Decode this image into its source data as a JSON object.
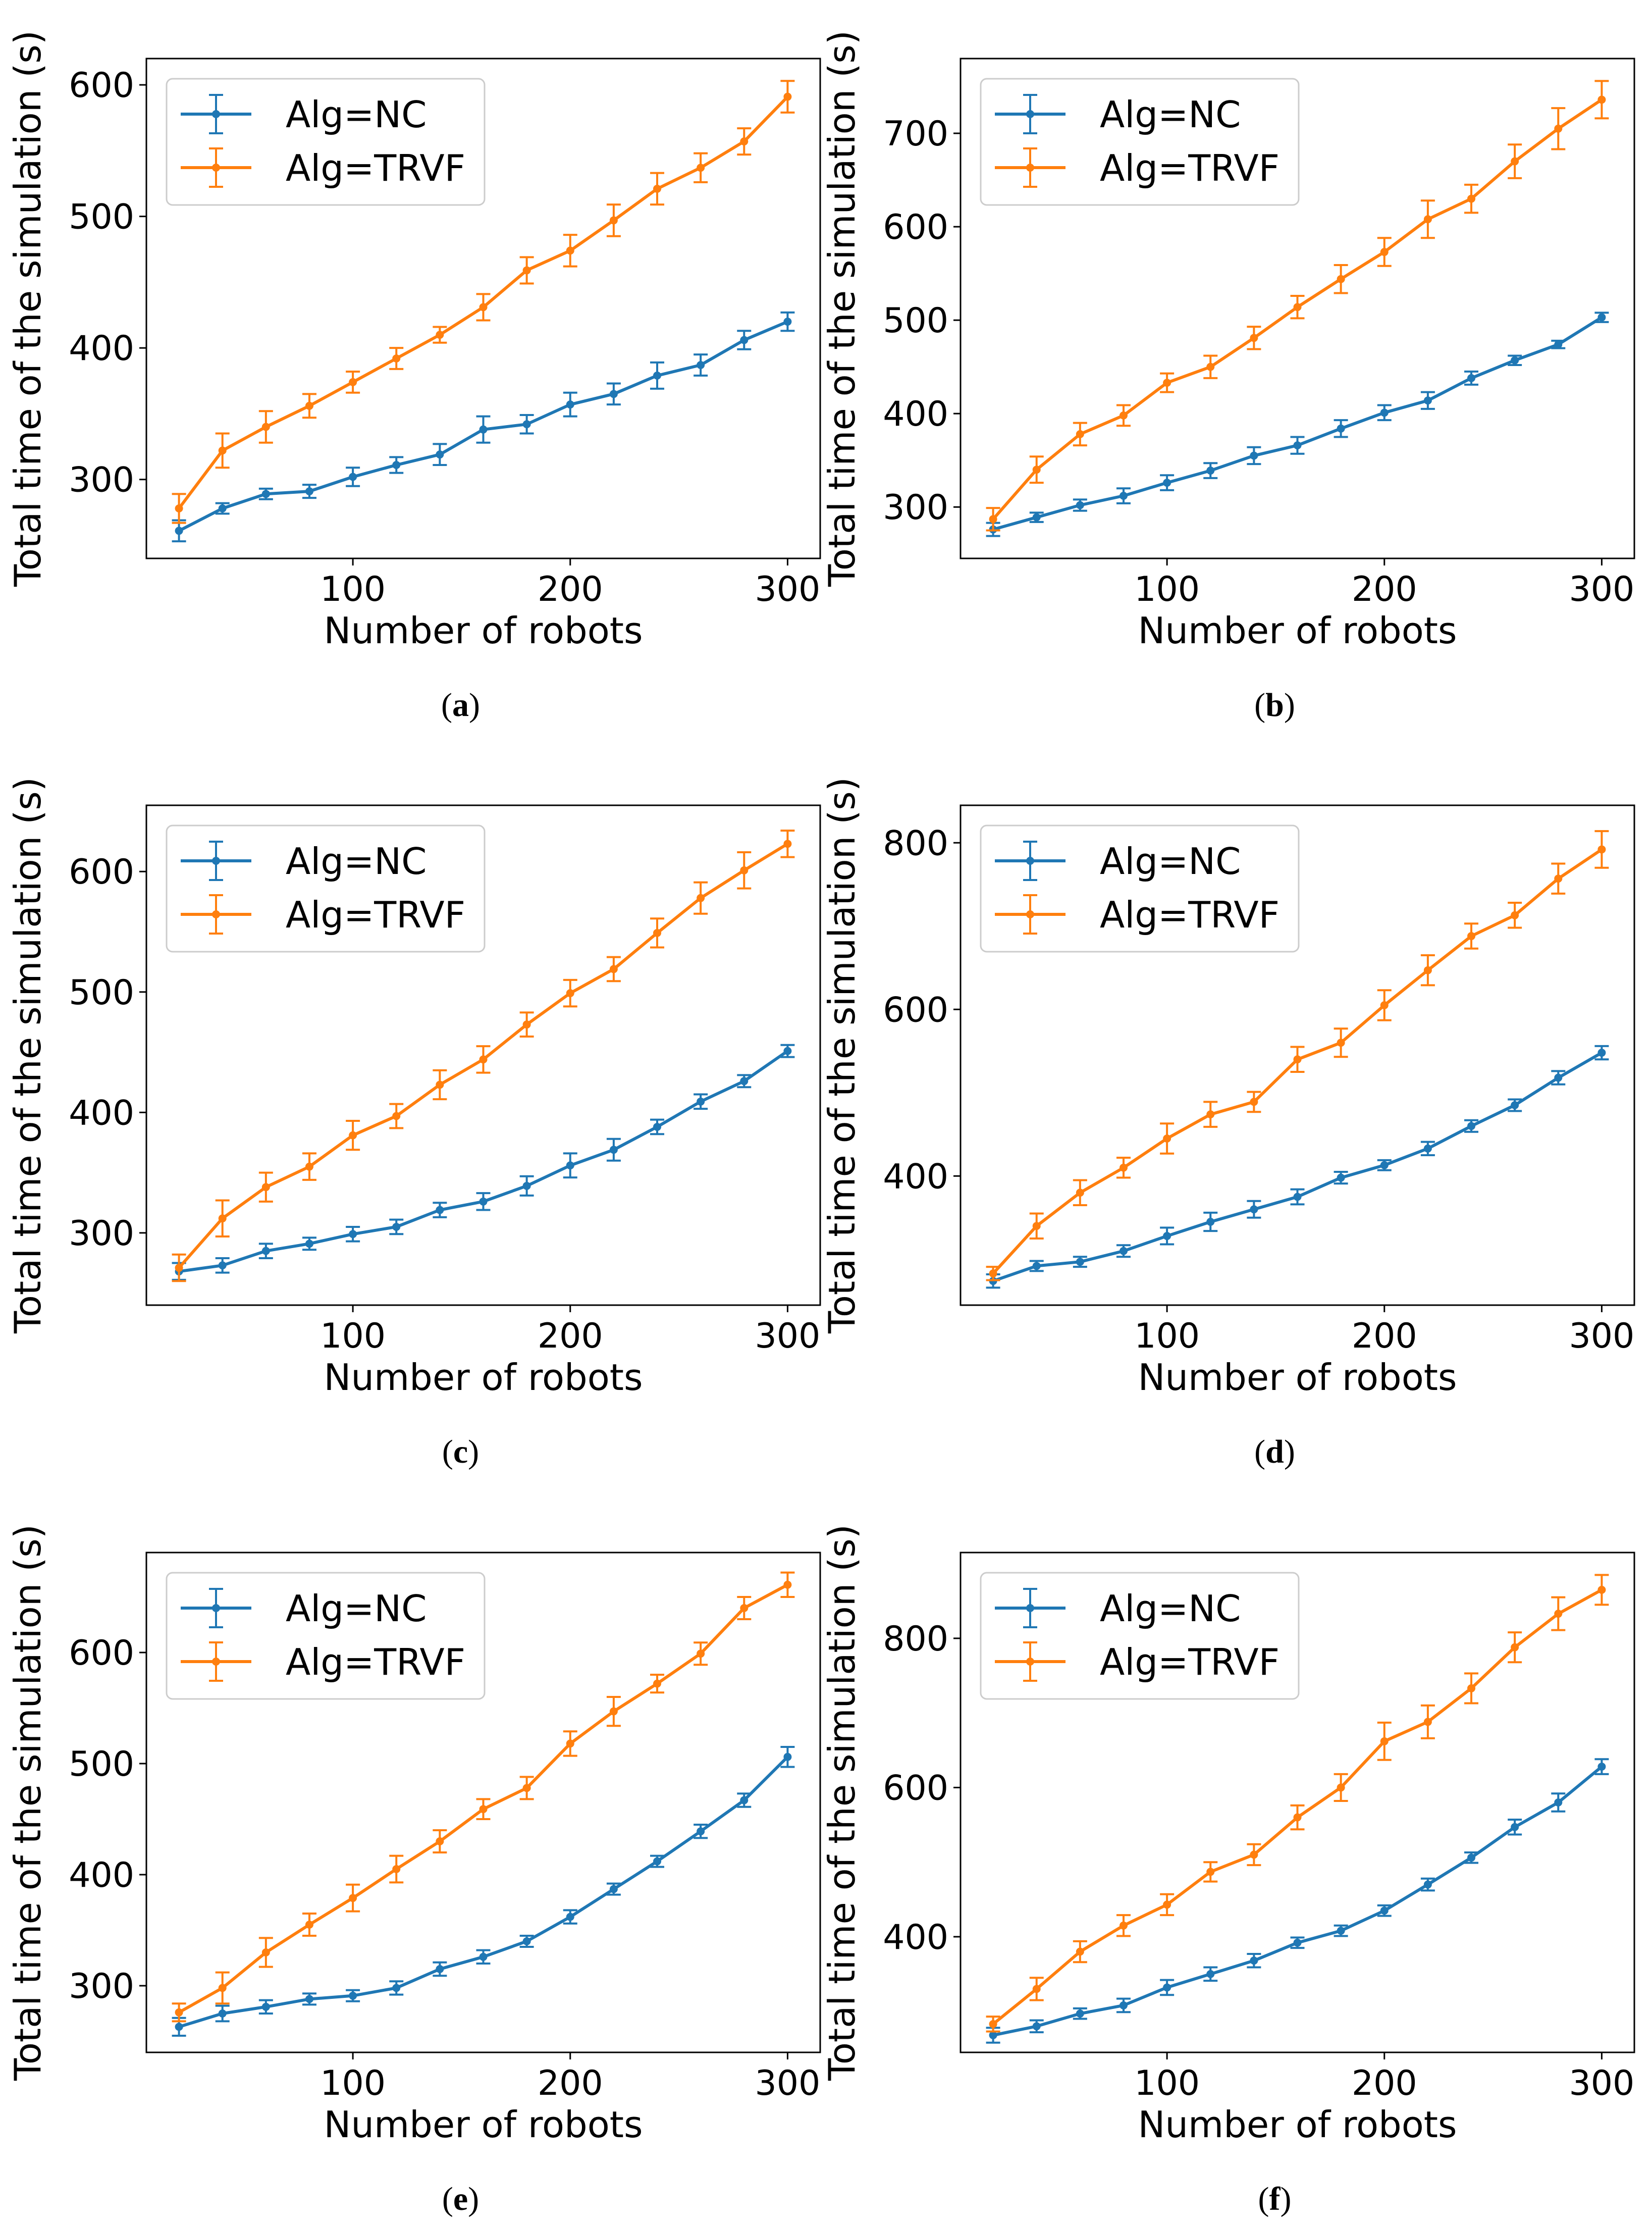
{
  "figure": {
    "colors": {
      "nc": "#1f77b4",
      "trvf": "#ff7f0e",
      "axis": "#000000"
    }
  },
  "chart_data": [
    {
      "type": "line",
      "caption": "(a)",
      "caption_letter": "a",
      "xlabel": "Number of robots",
      "ylabel": "Total time of the simulation (s)",
      "xlim": [
        5,
        315
      ],
      "ylim": [
        240,
        620
      ],
      "xticks": [
        100,
        200,
        300
      ],
      "yticks": [
        300,
        400,
        500,
        600
      ],
      "legend": [
        "Alg=NC",
        "Alg=TRVF"
      ],
      "legend_position": "upper-left",
      "x": [
        20,
        40,
        60,
        80,
        100,
        120,
        140,
        160,
        180,
        200,
        220,
        240,
        260,
        280,
        300
      ],
      "series": [
        {
          "name": "Alg=NC",
          "values": [
            261,
            278,
            289,
            291,
            302,
            311,
            319,
            338,
            342,
            357,
            365,
            379,
            387,
            406,
            420
          ],
          "errors": [
            8,
            4,
            4,
            5,
            7,
            6,
            8,
            10,
            7,
            9,
            8,
            10,
            8,
            7,
            7
          ]
        },
        {
          "name": "Alg=TRVF",
          "values": [
            278,
            322,
            340,
            356,
            374,
            392,
            410,
            431,
            459,
            474,
            497,
            521,
            537,
            557,
            591
          ],
          "errors": [
            11,
            13,
            12,
            9,
            8,
            8,
            6,
            10,
            10,
            12,
            12,
            12,
            11,
            10,
            12
          ]
        }
      ]
    },
    {
      "type": "line",
      "caption": "(b)",
      "caption_letter": "b",
      "xlabel": "Number of robots",
      "ylabel": "Total time of the simulation (s)",
      "xlim": [
        5,
        315
      ],
      "ylim": [
        245,
        780
      ],
      "xticks": [
        100,
        200,
        300
      ],
      "yticks": [
        300,
        400,
        500,
        600,
        700
      ],
      "legend": [
        "Alg=NC",
        "Alg=TRVF"
      ],
      "legend_position": "upper-left",
      "x": [
        20,
        40,
        60,
        80,
        100,
        120,
        140,
        160,
        180,
        200,
        220,
        240,
        260,
        280,
        300
      ],
      "series": [
        {
          "name": "Alg=NC",
          "values": [
            276,
            289,
            302,
            312,
            326,
            339,
            355,
            366,
            384,
            401,
            414,
            438,
            457,
            474,
            503
          ],
          "errors": [
            7,
            5,
            6,
            8,
            8,
            8,
            9,
            9,
            9,
            8,
            9,
            7,
            5,
            4,
            5
          ]
        },
        {
          "name": "Alg=TRVF",
          "values": [
            287,
            340,
            378,
            398,
            433,
            450,
            481,
            514,
            544,
            573,
            608,
            630,
            670,
            705,
            736
          ],
          "errors": [
            12,
            14,
            12,
            11,
            10,
            12,
            12,
            12,
            15,
            15,
            20,
            15,
            18,
            22,
            20
          ]
        }
      ]
    },
    {
      "type": "line",
      "caption": "(c)",
      "caption_letter": "c",
      "xlabel": "Number of robots",
      "ylabel": "Total time of the simulation (s)",
      "xlim": [
        5,
        315
      ],
      "ylim": [
        240,
        655
      ],
      "xticks": [
        100,
        200,
        300
      ],
      "yticks": [
        300,
        400,
        500,
        600
      ],
      "legend": [
        "Alg=NC",
        "Alg=TRVF"
      ],
      "legend_position": "upper-left",
      "x": [
        20,
        40,
        60,
        80,
        100,
        120,
        140,
        160,
        180,
        200,
        220,
        240,
        260,
        280,
        300
      ],
      "series": [
        {
          "name": "Alg=NC",
          "values": [
            268,
            273,
            285,
            291,
            299,
            305,
            319,
            326,
            339,
            356,
            369,
            388,
            409,
            426,
            451
          ],
          "errors": [
            7,
            6,
            6,
            5,
            6,
            6,
            6,
            7,
            8,
            10,
            9,
            6,
            6,
            5,
            5
          ]
        },
        {
          "name": "Alg=TRVF",
          "values": [
            271,
            312,
            338,
            355,
            381,
            397,
            423,
            444,
            473,
            499,
            519,
            549,
            578,
            601,
            623
          ],
          "errors": [
            11,
            15,
            12,
            11,
            12,
            10,
            12,
            11,
            10,
            11,
            10,
            12,
            13,
            15,
            11
          ]
        }
      ]
    },
    {
      "type": "line",
      "caption": "(d)",
      "caption_letter": "d",
      "xlabel": "Number of robots",
      "ylabel": "Total time of the simulation (s)",
      "xlim": [
        5,
        315
      ],
      "ylim": [
        245,
        845
      ],
      "xticks": [
        100,
        200,
        300
      ],
      "yticks": [
        400,
        600,
        800
      ],
      "legend": [
        "Alg=NC",
        "Alg=TRVF"
      ],
      "legend_position": "upper-left",
      "x": [
        20,
        40,
        60,
        80,
        100,
        120,
        140,
        160,
        180,
        200,
        220,
        240,
        260,
        280,
        300
      ],
      "series": [
        {
          "name": "Alg=NC",
          "values": [
            274,
            292,
            297,
            310,
            328,
            345,
            360,
            375,
            398,
            413,
            433,
            460,
            485,
            518,
            548
          ],
          "errors": [
            8,
            6,
            6,
            7,
            10,
            11,
            10,
            9,
            7,
            6,
            8,
            7,
            7,
            8,
            8
          ]
        },
        {
          "name": "Alg=TRVF",
          "values": [
            283,
            340,
            380,
            410,
            445,
            474,
            489,
            540,
            560,
            605,
            647,
            688,
            713,
            757,
            792
          ],
          "errors": [
            8,
            15,
            15,
            12,
            18,
            15,
            12,
            15,
            17,
            18,
            18,
            15,
            15,
            18,
            22
          ]
        }
      ]
    },
    {
      "type": "line",
      "caption": "(e)",
      "caption_letter": "e",
      "xlabel": "Number of robots",
      "ylabel": "Total time of the simulation (s)",
      "xlim": [
        5,
        315
      ],
      "ylim": [
        240,
        690
      ],
      "xticks": [
        100,
        200,
        300
      ],
      "yticks": [
        300,
        400,
        500,
        600
      ],
      "legend": [
        "Alg=NC",
        "Alg=TRVF"
      ],
      "legend_position": "upper-left",
      "x": [
        20,
        40,
        60,
        80,
        100,
        120,
        140,
        160,
        180,
        200,
        220,
        240,
        260,
        280,
        300
      ],
      "series": [
        {
          "name": "Alg=NC",
          "values": [
            263,
            275,
            281,
            288,
            291,
            298,
            315,
            326,
            340,
            362,
            387,
            412,
            439,
            467,
            506
          ],
          "errors": [
            8,
            7,
            6,
            5,
            5,
            6,
            6,
            6,
            5,
            6,
            5,
            5,
            6,
            6,
            9
          ]
        },
        {
          "name": "Alg=TRVF",
          "values": [
            276,
            298,
            330,
            355,
            379,
            405,
            430,
            459,
            478,
            518,
            547,
            572,
            599,
            640,
            661
          ],
          "errors": [
            8,
            14,
            13,
            10,
            12,
            12,
            10,
            9,
            10,
            11,
            13,
            8,
            10,
            10,
            11
          ]
        }
      ]
    },
    {
      "type": "line",
      "caption": "(f)",
      "caption_letter": "f",
      "xlabel": "Number of robots",
      "ylabel": "Total time of the simulation (s)",
      "xlim": [
        5,
        315
      ],
      "ylim": [
        245,
        915
      ],
      "xticks": [
        100,
        200,
        300
      ],
      "yticks": [
        400,
        600,
        800
      ],
      "legend": [
        "Alg=NC",
        "Alg=TRVF"
      ],
      "legend_position": "upper-left",
      "x": [
        20,
        40,
        60,
        80,
        100,
        120,
        140,
        160,
        180,
        200,
        220,
        240,
        260,
        280,
        300
      ],
      "series": [
        {
          "name": "Alg=NC",
          "values": [
            268,
            280,
            297,
            308,
            332,
            350,
            368,
            392,
            408,
            435,
            470,
            506,
            547,
            580,
            628
          ],
          "errors": [
            10,
            8,
            7,
            9,
            10,
            9,
            9,
            7,
            7,
            7,
            8,
            7,
            10,
            12,
            10
          ]
        },
        {
          "name": "Alg=TRVF",
          "values": [
            283,
            330,
            380,
            415,
            443,
            487,
            510,
            560,
            600,
            662,
            688,
            733,
            788,
            833,
            865
          ],
          "errors": [
            10,
            15,
            14,
            14,
            14,
            13,
            14,
            16,
            18,
            25,
            22,
            20,
            20,
            22,
            20
          ]
        }
      ]
    }
  ]
}
